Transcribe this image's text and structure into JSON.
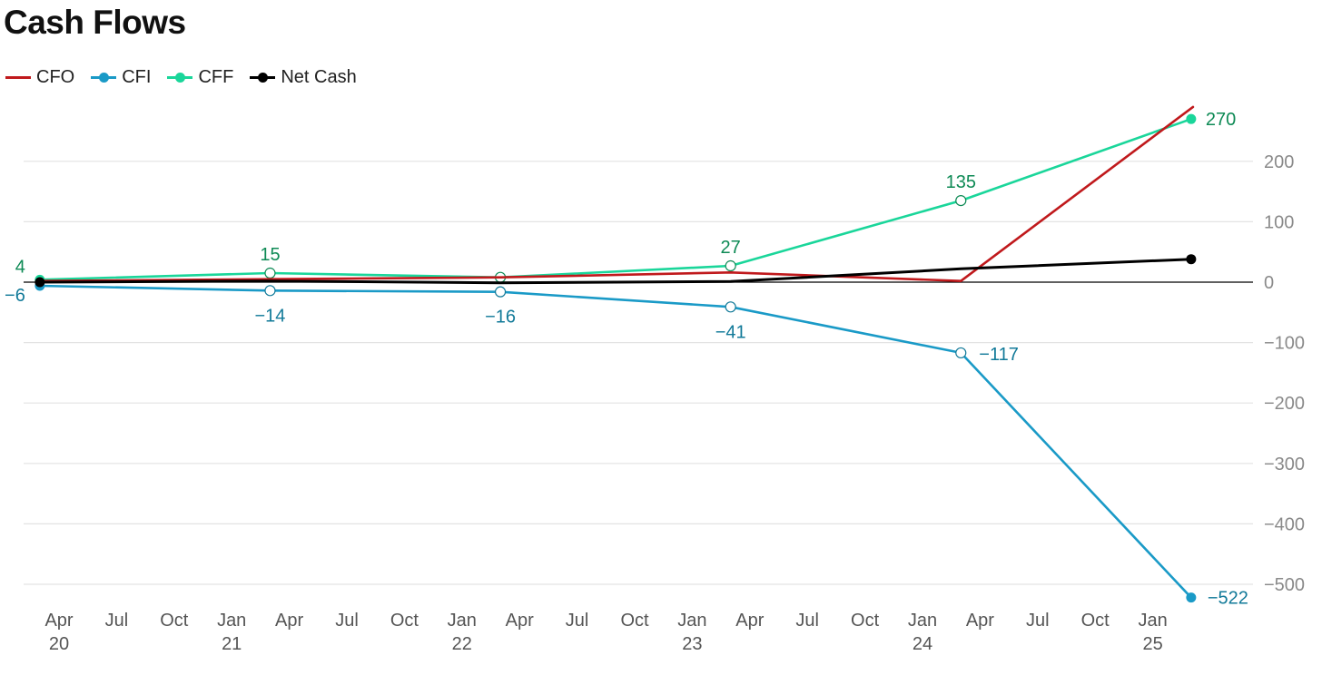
{
  "title": "Cash Flows",
  "chart_data": {
    "type": "line",
    "title": "Cash Flows",
    "xlabel": "",
    "ylabel": "",
    "x_axis": {
      "ticks": [
        {
          "date": "2020-04",
          "month": "Apr",
          "year": "20"
        },
        {
          "date": "2020-07",
          "month": "Jul",
          "year": ""
        },
        {
          "date": "2020-10",
          "month": "Oct",
          "year": ""
        },
        {
          "date": "2021-01",
          "month": "Jan",
          "year": "21"
        },
        {
          "date": "2021-04",
          "month": "Apr",
          "year": ""
        },
        {
          "date": "2021-07",
          "month": "Jul",
          "year": ""
        },
        {
          "date": "2021-10",
          "month": "Oct",
          "year": ""
        },
        {
          "date": "2022-01",
          "month": "Jan",
          "year": "22"
        },
        {
          "date": "2022-04",
          "month": "Apr",
          "year": ""
        },
        {
          "date": "2022-07",
          "month": "Jul",
          "year": ""
        },
        {
          "date": "2022-10",
          "month": "Oct",
          "year": ""
        },
        {
          "date": "2023-01",
          "month": "Jan",
          "year": "23"
        },
        {
          "date": "2023-04",
          "month": "Apr",
          "year": ""
        },
        {
          "date": "2023-07",
          "month": "Jul",
          "year": ""
        },
        {
          "date": "2023-10",
          "month": "Oct",
          "year": ""
        },
        {
          "date": "2024-01",
          "month": "Jan",
          "year": "24"
        },
        {
          "date": "2024-04",
          "month": "Apr",
          "year": ""
        },
        {
          "date": "2024-07",
          "month": "Jul",
          "year": ""
        },
        {
          "date": "2024-10",
          "month": "Oct",
          "year": ""
        },
        {
          "date": "2025-01",
          "month": "Jan",
          "year": "25"
        }
      ]
    },
    "y_axis": {
      "position": "right",
      "ylim": [
        -520,
        290
      ],
      "ticks": [
        {
          "value": 200,
          "label": "200"
        },
        {
          "value": 100,
          "label": "100"
        },
        {
          "value": 0,
          "label": "0"
        },
        {
          "value": -100,
          "label": "−100"
        },
        {
          "value": -200,
          "label": "−200"
        },
        {
          "value": -300,
          "label": "−300"
        },
        {
          "value": -400,
          "label": "−400"
        },
        {
          "value": -500,
          "label": "−500"
        }
      ],
      "grid": true
    },
    "legend": {
      "placement": "top-left"
    },
    "x": [
      "2020-03",
      "2021-03",
      "2022-03",
      "2023-03",
      "2024-03",
      "2025-03"
    ],
    "series": [
      {
        "name": "CFO",
        "color": "#c0191c",
        "marker": "none",
        "values": [
          2,
          5,
          8,
          16,
          2,
          290
        ],
        "labels": [
          null,
          null,
          null,
          null,
          null,
          null
        ]
      },
      {
        "name": "CFI",
        "color": "#1a9ac7",
        "label_color": "#127a99",
        "marker": "dot",
        "values": [
          -6,
          -14,
          -16,
          -41,
          -117,
          -522
        ],
        "labels": [
          "−6",
          "−14",
          "−16",
          "−41",
          "−117",
          "−522"
        ]
      },
      {
        "name": "CFF",
        "color": "#1ad69a",
        "label_color": "#0e8a55",
        "marker": "dot",
        "values": [
          4,
          15,
          8,
          27,
          135,
          270
        ],
        "labels": [
          "4",
          "15",
          null,
          "27",
          "135",
          "270"
        ]
      },
      {
        "name": "Net Cash",
        "color": "#000000",
        "marker": "dot",
        "values": [
          0,
          2,
          -1,
          1,
          22,
          38
        ],
        "labels": [
          null,
          null,
          null,
          null,
          null,
          null
        ]
      }
    ]
  }
}
